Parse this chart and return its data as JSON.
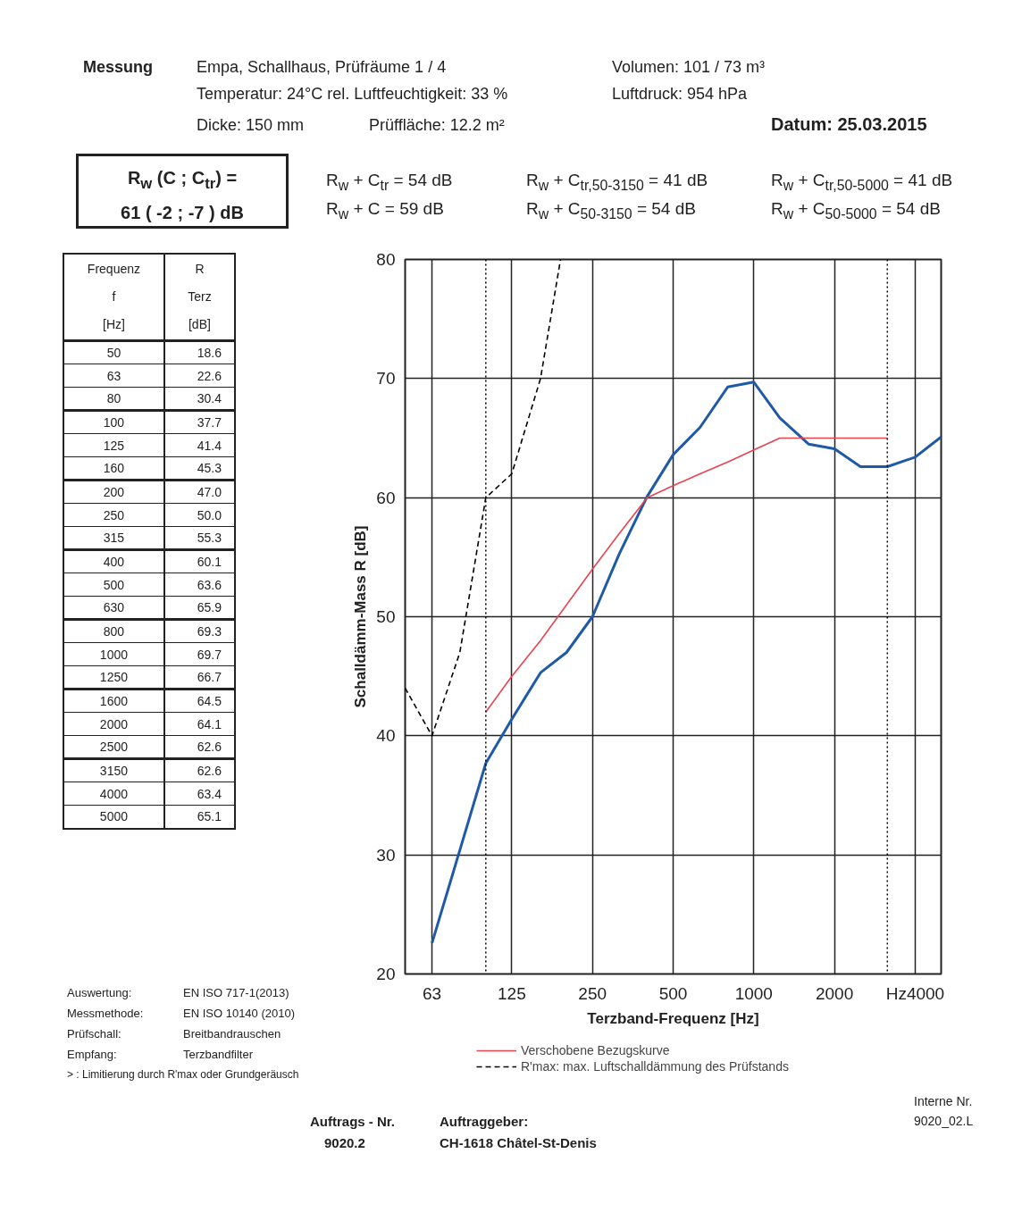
{
  "chart_data": {
    "type": "line",
    "xlabel": "Terzband-Frequenz [Hz]",
    "ylabel": "Schalldämm-Mass R [dB]",
    "series": [
      {
        "color": "#1f5aa6",
        "line_style": "solid",
        "x": [
          63,
          80,
          100,
          125,
          160,
          200,
          250,
          315,
          400,
          500,
          630,
          800,
          1000,
          1250,
          1600,
          2000,
          2500,
          3150,
          4000,
          5000
        ],
        "values": [
          22.6,
          30.4,
          37.7,
          41.4,
          45.3,
          47.0,
          50.0,
          55.3,
          60.1,
          63.6,
          65.9,
          69.3,
          69.7,
          66.7,
          64.5,
          64.1,
          62.6,
          62.6,
          63.4,
          65.1
        ]
      },
      {
        "name": "Verschobene Bezugskurve",
        "color": "#e8434f",
        "line_style": "solid",
        "x": [
          100,
          125,
          160,
          200,
          250,
          315,
          400,
          500,
          630,
          800,
          1000,
          1250,
          1600,
          2000,
          2500,
          3150
        ],
        "values": [
          42,
          45,
          48,
          51,
          54,
          57,
          60,
          61,
          62,
          63,
          64,
          65,
          65,
          65,
          65,
          65
        ]
      },
      {
        "name": "R'max: max. Luftschalldämmung des Prüfstands",
        "color": "#000000",
        "line_style": "dashed",
        "x": [
          50,
          63,
          80,
          100,
          125,
          160,
          190
        ],
        "values": [
          44,
          40,
          47,
          60,
          62,
          70,
          80
        ]
      }
    ],
    "xlim": [
      50,
      5000
    ],
    "ylim": [
      20,
      80
    ],
    "log": "x",
    "xticks": [
      63,
      125,
      250,
      500,
      1000,
      2000,
      {
        "value": 4000,
        "label": "Hz4000"
      }
    ],
    "yticks": [
      20,
      30,
      40,
      50,
      60,
      70,
      80
    ],
    "grid": true,
    "legend": "bottom",
    "ref_lines": [
      {
        "axis": "x",
        "value": 100,
        "label": null,
        "color": "#000000",
        "line_style": "dotted"
      },
      {
        "axis": "x",
        "value": 3150,
        "label": null,
        "color": "#000000",
        "line_style": "dotted"
      }
    ],
    "annotations": [
      "Messung",
      "Empa, Schallhaus, Prüfräume  1 / 4",
      "Volumen:  101 / 73  m³",
      "Temperatur:  24°C   rel. Luftfeuchtigkeit: 33 %",
      "Luftdruck:  954 hPa",
      "Dicke:  150 mm",
      "Prüffläche:  12.2 m²",
      "Datum: 25.03.2015",
      "R$_{w}$ (C ; C$_{tr}$) =",
      "61  ( -2 ;   -7 ) dB",
      "R$_{w}$ + C$_{tr}$  =  54  dB",
      "R$_{w}$ + C$_{tr,50-3150}$ = 41  dB",
      "R$_{w}$ + C$_{tr,50-5000}$ = 41  dB",
      "R$_{w}$ + C  =  59  dB",
      "R$_{w}$ + C$_{50-3150}$ = 54  dB",
      "R$_{w}$ + C$_{50-5000}$ = 54  dB",
      "Frequenz",
      "R",
      "f",
      "Terz",
      "[Hz]",
      "[dB]",
      "Auswertung:",
      "EN ISO 717-1(2013)",
      "Messmethode:",
      "EN ISO 10140 (2010)",
      "Prüfschall:",
      "Breitbandrauschen",
      "Empfang:",
      "Terzbandfilter",
      "> : Limitierung durch R'max oder Grundgeräusch",
      "Auftrags - Nr.",
      "9020.2",
      "Auftraggeber:",
      "CH-1618 Châtel-St-Denis",
      "Interne Nr.",
      "9020_02.L",
      "50",
      "63",
      "80",
      "100",
      "125",
      "160",
      "200",
      "250",
      "315",
      "400",
      "500",
      "630",
      "800",
      "1000",
      "1250",
      "1600",
      "2000",
      "2500",
      "3150",
      "4000",
      "5000",
      "18.6",
      "22.6",
      "30.4",
      "37.7",
      "41.4",
      "45.3",
      "47.0",
      "50.0",
      "55.3",
      "60.1",
      "63.6",
      "65.9",
      "69.3",
      "69.7",
      "66.7",
      "64.5",
      "64.1",
      "62.6",
      "62.6",
      "63.4",
      "65.1"
    ]
  }
}
